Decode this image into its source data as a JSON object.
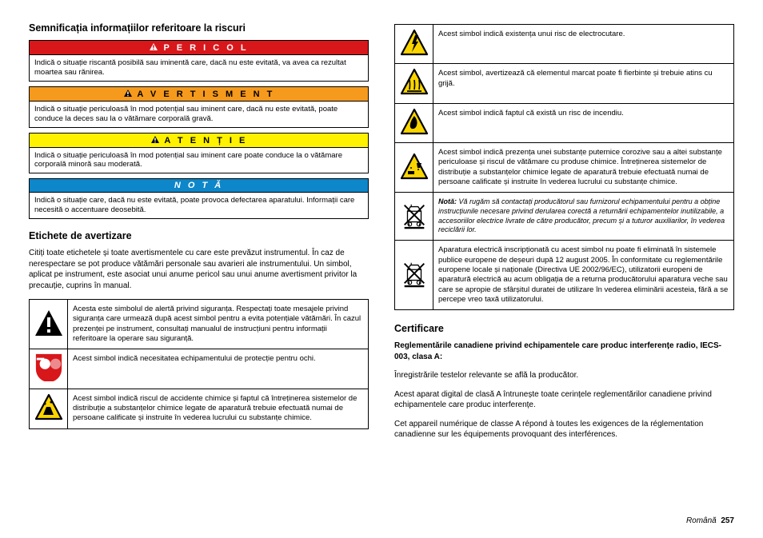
{
  "section_risk_title": "Semnificația informațiilor referitoare la riscuri",
  "hazards": {
    "pericol": {
      "label": "P E R I C O L",
      "bg": "#d8171b",
      "fg": "#ffffff",
      "text": "Indică o situație riscantă posibilă sau iminentă care, dacă nu este evitată, va avea ca rezultat moartea sau rănirea."
    },
    "avertisment": {
      "label": "A V E R T I S M E N T",
      "bg": "#f59a1d",
      "fg": "#000000",
      "text": "Indică o situație periculoasă în mod potențial sau iminent care, dacă nu este evitată, poate conduce la deces sau la o vătămare corporală gravă."
    },
    "atentie": {
      "label": "A T E N Ț I E",
      "bg": "#fff200",
      "fg": "#000000",
      "text": "Indică o situație periculoasă în mod potențial sau iminent care poate conduce la o vătămare corporală minoră sau moderată."
    },
    "nota": {
      "label": "N O T Ă",
      "bg": "#0d87c9",
      "fg": "#ffffff",
      "text": "Indică o situație care, dacă nu este evitată, poate provoca defectarea aparatului. Informații care necesită o accentuare deosebită.",
      "no_icon": true
    }
  },
  "section_labels_title": "Etichete de avertizare",
  "labels_intro": "Citiți toate etichetele și toate avertismentele cu care este prevăzut instrumentul. În caz de nerespectare se pot produce vătămări personale sau avarieri ale instrumentului. Un simbol, aplicat pe instrument, este asociat unui anume pericol sau unui anume avertisment privitor la precauție, cuprins în manual.",
  "left_icons": [
    {
      "icon": "alert-black",
      "text": "Acesta este simbolul de alertă privind siguranța. Respectați toate mesajele privind siguranța care urmează după acest simbol pentru a evita potențiale vătămări. În cazul prezenței pe instrument, consultați manualul de instrucțiuni pentru informații referitoare la operare sau siguranță."
    },
    {
      "icon": "eye-protection",
      "text": "Acest simbol indică necesitatea echipamentului de protecție pentru ochi."
    },
    {
      "icon": "chemical",
      "text": "Acest simbol indică riscul de accidente chimice și faptul că întreținerea sistemelor de distribuție a substanțelor chimice legate de aparatură trebuie efectuată numai de persoane calificate și instruite în vederea lucrului cu substanțe chimice."
    }
  ],
  "right_icons": [
    {
      "icon": "shock",
      "text": "Acest simbol indică existența unui risc de electrocutare."
    },
    {
      "icon": "hot",
      "text": "Acest simbol, avertizează că elementul marcat poate fi fierbinte și trebuie atins cu grijă."
    },
    {
      "icon": "fire",
      "text": "Acest simbol indică faptul că există un risc de incendiu."
    },
    {
      "icon": "corrosive",
      "text": "Acest simbol indică prezența unei substanțe puternice corozive sau a altei substanțe periculoase și riscul de vătămare cu produse chimice. Întreținerea sistemelor de distribuție a substanțelor chimice legate de aparatură trebuie efectuată numai de persoane calificate și instruite în vederea lucrului cu substanțe chimice."
    },
    {
      "icon": "weee-note",
      "text_html": "<b><i>Notă:</i></b> <i>Vă rugăm să contactați producătorul sau furnizorul echipamentului pentru a obține instrucțiunile necesare privind derularea corectă a returnării echipamentelor inutilizabile, a accesoriilor electrice livrate de către producător, precum și a tuturor auxiliarilor, în vederea reciclării lor.</i>"
    },
    {
      "icon": "weee",
      "text": "Aparatura electrică inscripționată cu acest simbol nu poate fi eliminată în sistemele publice europene de deșeuri după 12 august 2005. În conformitate cu reglementările europene locale și naționale (Directiva UE 2002/96/EC), utilizatorii europeni de aparatură electrică au acum obligația de a returna producătorului aparatura veche sau care se apropie de sfârșitul duratei de utilizare în vederea eliminării acesteia, fără a se percepe vreo taxă utilizatorului."
    }
  ],
  "section_cert_title": "Certificare",
  "cert_subtitle": "Reglementările canadiene privind echipamentele care produc interferențe radio, IECS-003, clasa A",
  "cert_p1": "Înregistrările testelor relevante se află la producător.",
  "cert_p2": "Acest aparat digital de clasă A întrunește toate cerințele reglementărilor canadiene privind echipamentele care produc interferențe.",
  "cert_p3": "Cet appareil numérique de classe A répond à toutes les exigences de la réglementation canadienne sur les équipements provoquant des interférences.",
  "footer_lang": "Română",
  "footer_page": "257",
  "colors": {
    "hazard_icon_yellow": "#f9d400",
    "hazard_icon_red": "#d8171b",
    "hazard_icon_black": "#000000"
  }
}
